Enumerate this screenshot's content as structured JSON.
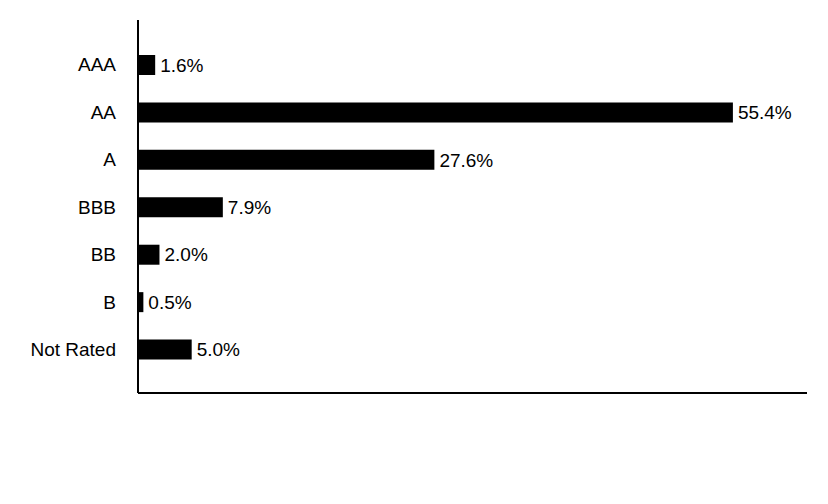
{
  "chart_data": {
    "type": "bar",
    "orientation": "horizontal",
    "categories": [
      "AAA",
      "AA",
      "A",
      "BBB",
      "BB",
      "B",
      "Not Rated"
    ],
    "values": [
      1.6,
      55.4,
      27.6,
      7.9,
      2.0,
      0.5,
      5.0
    ],
    "value_labels": [
      "1.6%",
      "55.4%",
      "27.6%",
      "7.9%",
      "2.0%",
      "0.5%",
      "5.0%"
    ],
    "data_labels": true,
    "color": "#000000",
    "xlim": [
      0,
      62.3
    ],
    "tick_labels": "y",
    "grid": false
  }
}
